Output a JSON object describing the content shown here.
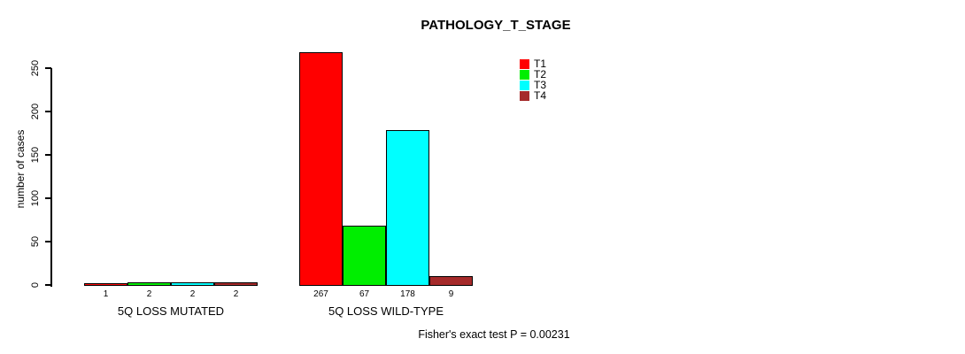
{
  "chart_data": {
    "type": "bar",
    "title": "PATHOLOGY_T_STAGE",
    "ylabel": "number of cases",
    "xlabel": "",
    "ylim": [
      0,
      250
    ],
    "yticks": [
      0,
      50,
      100,
      150,
      200,
      250
    ],
    "grid": false,
    "legend_position": "top-right",
    "categories": [
      "5Q LOSS MUTATED",
      "5Q LOSS WILD-TYPE"
    ],
    "series": [
      {
        "name": "T1",
        "color": "#ff0000",
        "values": [
          1,
          267
        ]
      },
      {
        "name": "T2",
        "color": "#00ee00",
        "values": [
          2,
          67
        ]
      },
      {
        "name": "T3",
        "color": "#00ffff",
        "values": [
          2,
          178
        ]
      },
      {
        "name": "T4",
        "color": "#a52a2a",
        "values": [
          2,
          9
        ]
      }
    ],
    "bar_value_labels": {
      "5Q LOSS MUTATED": [
        "1",
        "2",
        "2",
        "2"
      ],
      "5Q LOSS WILD-TYPE": [
        "267",
        "67",
        "178",
        "9"
      ]
    },
    "annotation": "Fisher's exact test P = 0.00231"
  }
}
